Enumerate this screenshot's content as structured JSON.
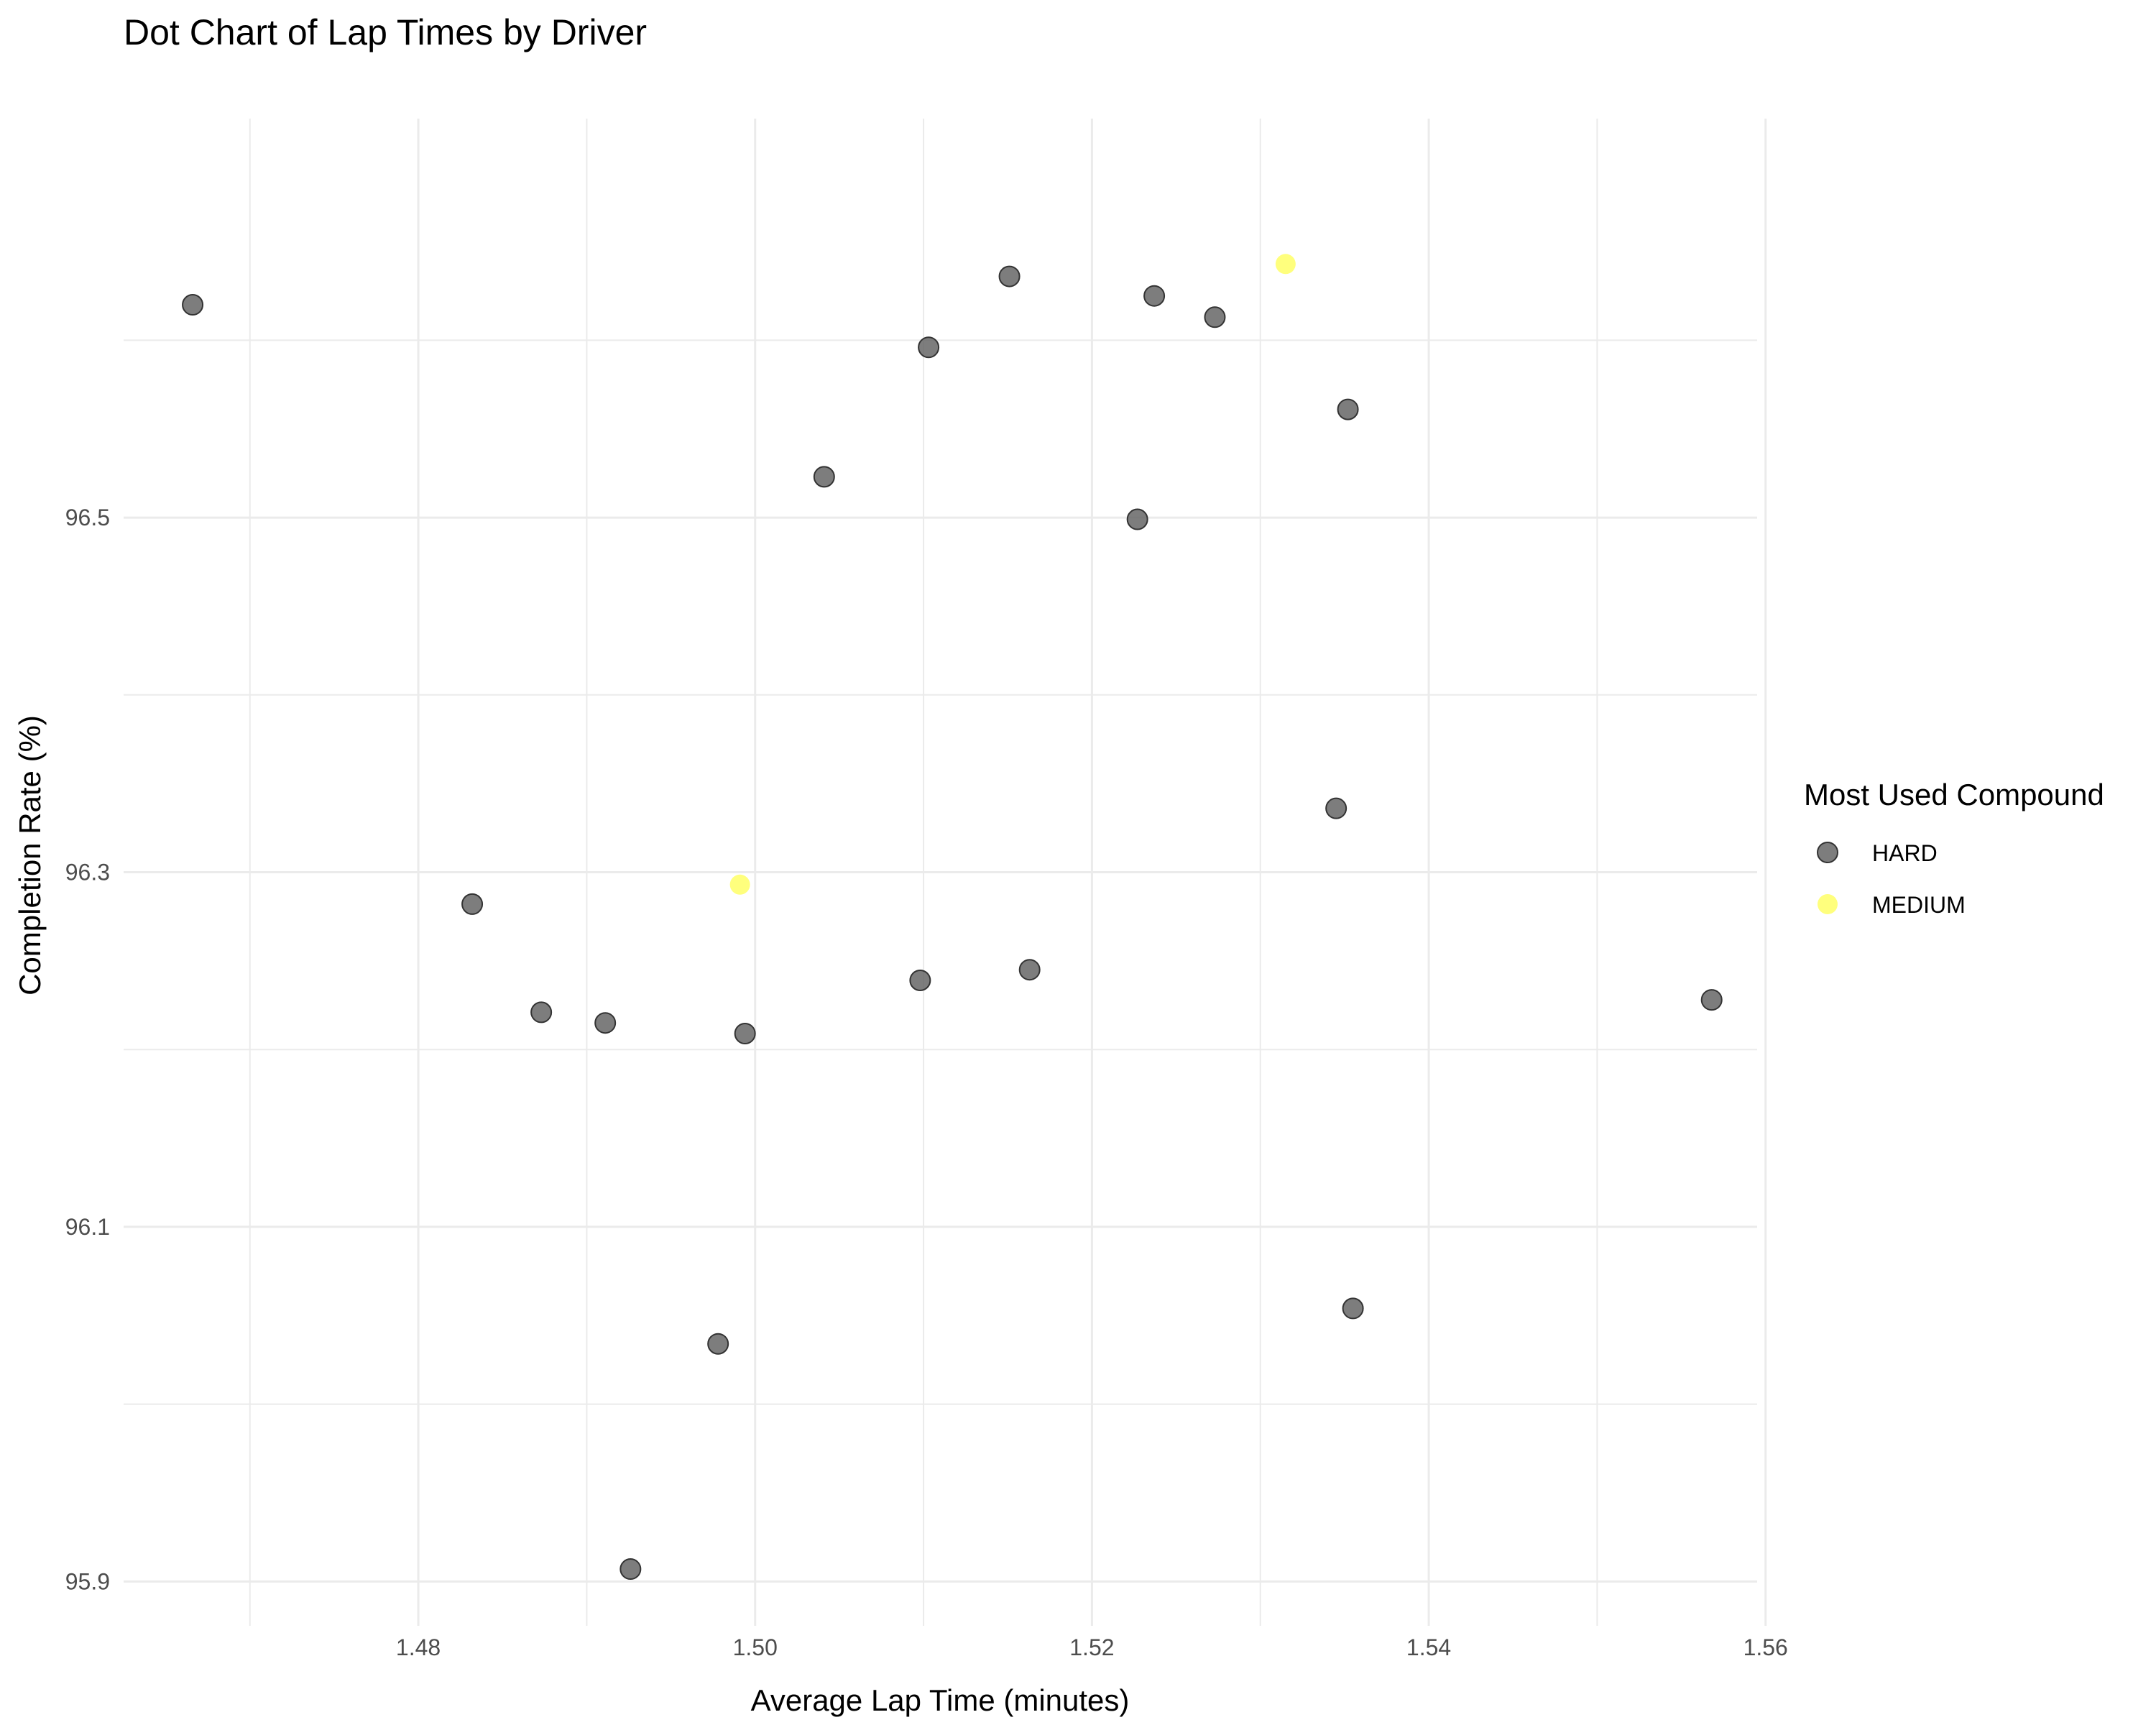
{
  "chart_data": {
    "type": "scatter",
    "title": "Dot Chart of Lap Times by Driver",
    "xlabel": "Average Lap Time (minutes)",
    "ylabel": "Completion Rate (%)",
    "xlim": [
      1.4625,
      1.5595
    ],
    "ylim": [
      95.875,
      96.725
    ],
    "x_ticks": [
      1.48,
      1.5,
      1.52,
      1.54,
      1.56
    ],
    "x_tick_labels": [
      "1.48",
      "1.50",
      "1.52",
      "1.54",
      "1.56"
    ],
    "y_ticks": [
      95.9,
      96.1,
      96.3,
      96.5
    ],
    "y_tick_labels": [
      "95.9",
      "96.1",
      "96.3",
      "96.5"
    ],
    "grid": true,
    "legend": {
      "title": "Most Used Compound",
      "position": "right"
    },
    "series": [
      {
        "name": "HARD",
        "color": "#666666",
        "points": [
          {
            "x": 1.4666,
            "y": 96.62
          },
          {
            "x": 1.4832,
            "y": 96.282
          },
          {
            "x": 1.4873,
            "y": 96.221
          },
          {
            "x": 1.4911,
            "y": 96.215
          },
          {
            "x": 1.4926,
            "y": 95.907
          },
          {
            "x": 1.4978,
            "y": 96.034
          },
          {
            "x": 1.4994,
            "y": 96.209
          },
          {
            "x": 1.5041,
            "y": 96.523
          },
          {
            "x": 1.5098,
            "y": 96.239
          },
          {
            "x": 1.5103,
            "y": 96.596
          },
          {
            "x": 1.5151,
            "y": 96.636
          },
          {
            "x": 1.5163,
            "y": 96.245
          },
          {
            "x": 1.5227,
            "y": 96.499
          },
          {
            "x": 1.5237,
            "y": 96.625
          },
          {
            "x": 1.5273,
            "y": 96.613
          },
          {
            "x": 1.5345,
            "y": 96.336
          },
          {
            "x": 1.5352,
            "y": 96.561
          },
          {
            "x": 1.5355,
            "y": 96.054
          },
          {
            "x": 1.5568,
            "y": 96.228
          }
        ]
      },
      {
        "name": "MEDIUM",
        "color": "#ffff66",
        "points": [
          {
            "x": 1.4991,
            "y": 96.293
          },
          {
            "x": 1.5315,
            "y": 96.643
          }
        ]
      }
    ]
  }
}
